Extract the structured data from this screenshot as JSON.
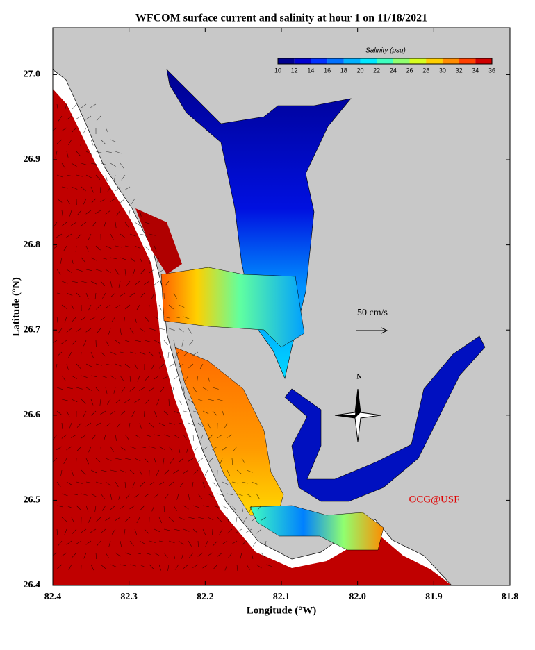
{
  "title": "WFCOM surface current and salinity at hour 1 on 11/18/2021",
  "x_axis": {
    "label": "Longitude (°W)",
    "lim": [
      82.4,
      81.8
    ],
    "ticks": [
      82.4,
      82.3,
      82.2,
      82.1,
      {
        "value": 82.0,
        "label": "82.0"
      },
      81.9,
      81.8
    ]
  },
  "y_axis": {
    "label": "Latitude (°N)",
    "lim": [
      26.4,
      27.055
    ],
    "ticks": [
      26.4,
      26.5,
      26.6,
      26.7,
      26.8,
      26.9,
      {
        "value": 27.0,
        "label": "27.0"
      }
    ]
  },
  "colorbar": {
    "title": "Salinity (psu)",
    "lim": [
      10,
      36
    ],
    "ticks": [
      10,
      12,
      14,
      16,
      18,
      20,
      22,
      24,
      26,
      28,
      30,
      32,
      34,
      36
    ],
    "colors": [
      "#00008f",
      "#0000d0",
      "#0030ff",
      "#0070ff",
      "#00b0ff",
      "#00e8ff",
      "#40ffc0",
      "#90ff70",
      "#d8ff20",
      "#ffd000",
      "#ff8c00",
      "#ff4000",
      "#d00000"
    ]
  },
  "scale_arrow": {
    "label": "50 cm/s"
  },
  "compass": {
    "label": "N"
  },
  "credit": "OCG@USF"
}
